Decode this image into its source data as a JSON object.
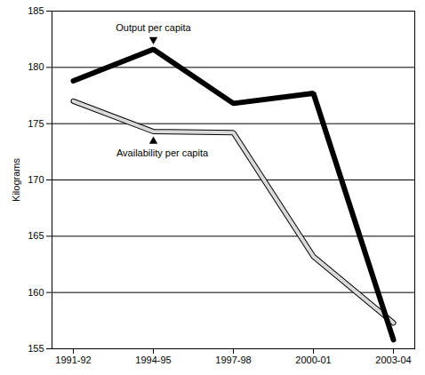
{
  "chart_data": {
    "type": "line",
    "ylabel": "Kilograms",
    "categories": [
      "1991-92",
      "1994-95",
      "1997-98",
      "2000-01",
      "2003-04"
    ],
    "series": [
      {
        "name": "Output per capita",
        "color": "#000000",
        "values": [
          178.8,
          181.6,
          176.8,
          177.7,
          155.8
        ]
      },
      {
        "name": "Availability per capita",
        "color": "#d9d9d9",
        "values": [
          177.0,
          174.3,
          174.2,
          163.2,
          157.3
        ]
      }
    ],
    "ylim": [
      155,
      185
    ],
    "yticks": [
      155,
      160,
      165,
      170,
      175,
      180,
      185
    ],
    "grid": true
  }
}
